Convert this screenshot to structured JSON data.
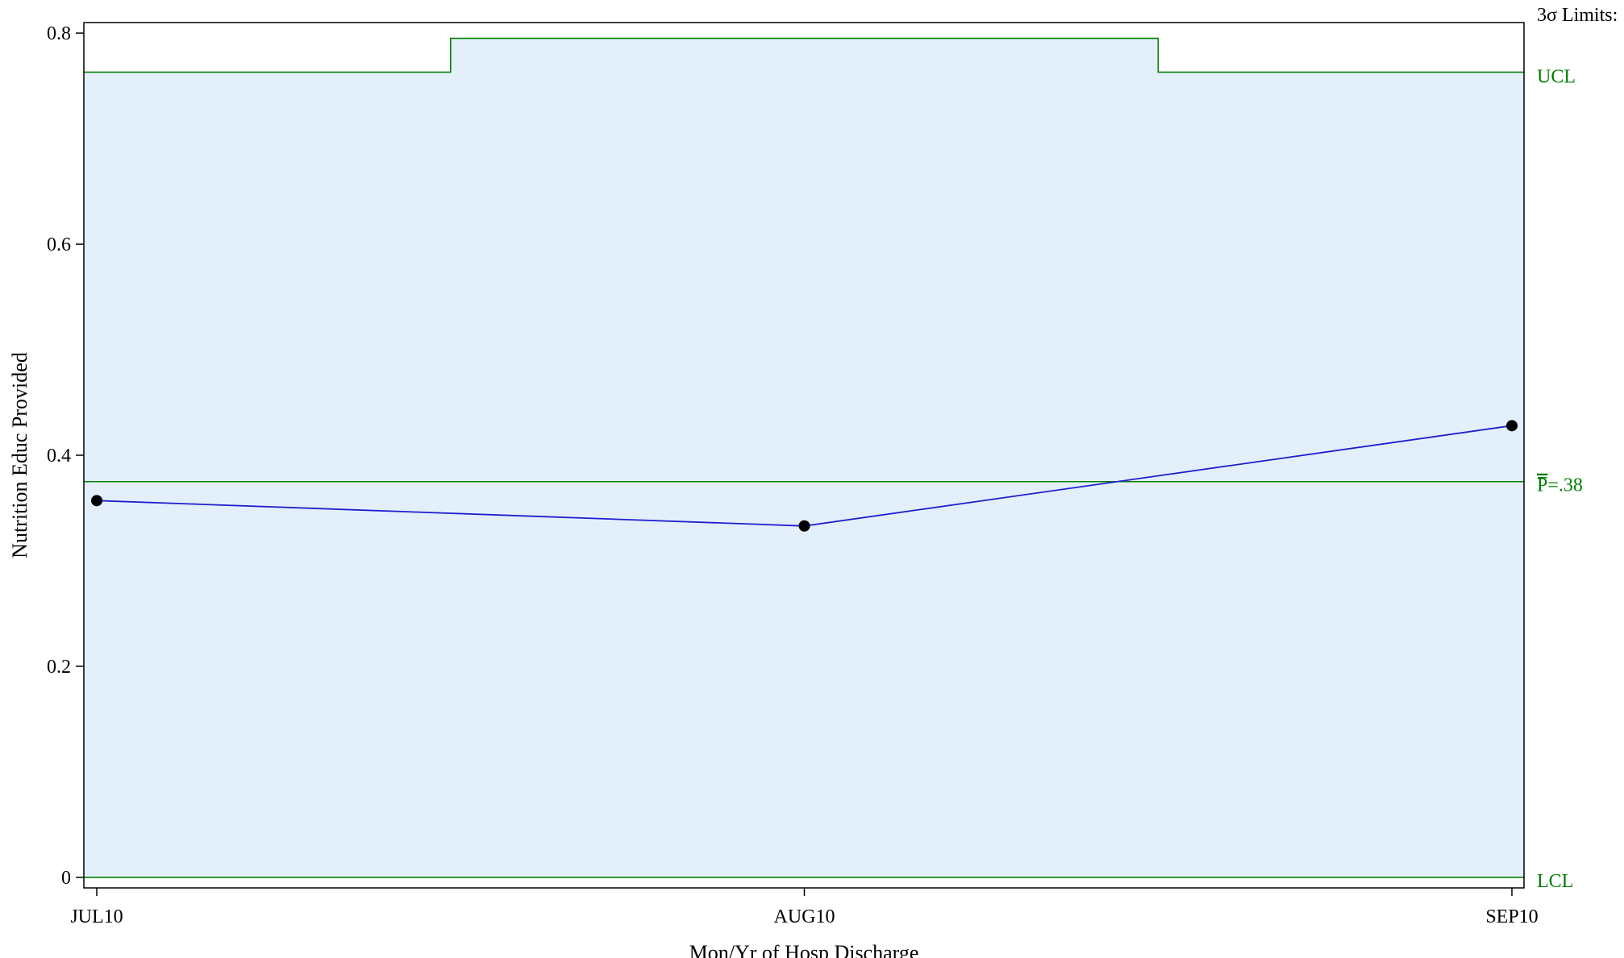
{
  "chart_data": {
    "type": "line",
    "chart_kind": "p-chart",
    "xlabel": "Mon/Yr of Hosp Discharge",
    "ylabel": "Nutrition Educ Provided",
    "ylim": [
      -0.01,
      0.81
    ],
    "yticks": [
      0,
      0.2,
      0.4,
      0.6,
      0.8
    ],
    "ytick_labels": [
      "0",
      "0.2",
      "0.4",
      "0.6",
      "0.8"
    ],
    "categories": [
      "JUL10",
      "AUG10",
      "SEP10"
    ],
    "series": [
      {
        "values": [
          0.357,
          0.333,
          0.428
        ],
        "color": "#1f1fcf",
        "marker": "dot"
      }
    ],
    "limits_heading": "3σ Limits:",
    "ucl": {
      "label": "UCL",
      "values": [
        0.763,
        0.795,
        0.763
      ]
    },
    "center_line": {
      "label_prefix": "P",
      "label_suffix": "=.38",
      "value": 0.375
    },
    "lcl": {
      "label": "LCL",
      "value": 0.0
    },
    "band_color": "#e3f0fc",
    "limit_color": "#008000",
    "grid": false
  }
}
